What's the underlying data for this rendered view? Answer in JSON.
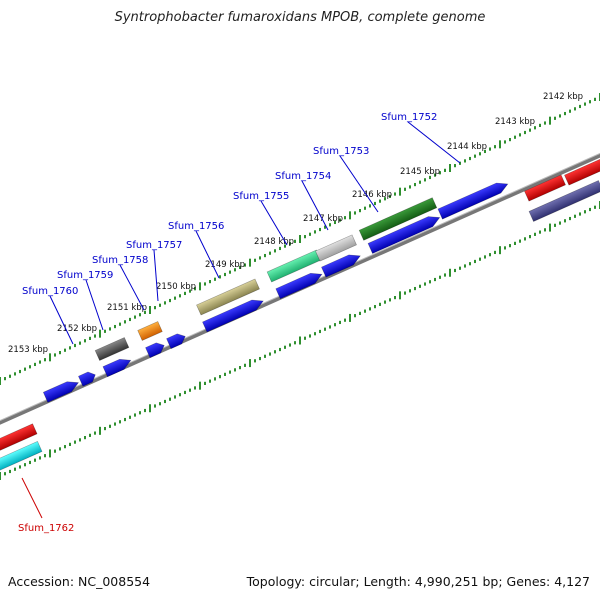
{
  "title": "Syntrophobacter fumaroxidans MPOB, complete genome",
  "footer": {
    "accession": "Accession: NC_008554",
    "info": "Topology: circular; Length: 4,990,251 bp; Genes: 4,127"
  },
  "colors": {
    "backbone": "#808080",
    "tick_outer": "#3aa53a",
    "tick_inner": "#3aa53a",
    "label_gene": "#0000cc",
    "label_red": "#cc0000",
    "kbp_label": "#111111"
  },
  "kbp_labels": [
    "2153 kbp",
    "2152 kbp",
    "2151 kbp",
    "2150 kbp",
    "2149 kbp",
    "2148 kbp",
    "2147 kbp",
    "2146 kbp",
    "2145 kbp",
    "2144 kbp",
    "2143 kbp",
    "2142 kbp"
  ],
  "gene_labels": [
    "Sfum_1760",
    "Sfum_1759",
    "Sfum_1758",
    "Sfum_1757",
    "Sfum_1756",
    "Sfum_1755",
    "Sfum_1754",
    "Sfum_1753",
    "Sfum_1752",
    "Sfum_1762"
  ]
}
